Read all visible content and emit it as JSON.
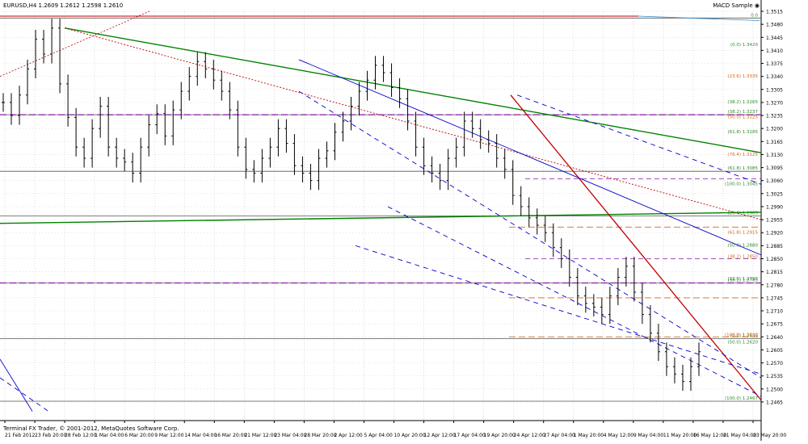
{
  "header": {
    "symbol_info": "EURUSD,H4  1.2609 1.2612 1.2598 1.2610",
    "indicator_label": "MACD Sample ◉"
  },
  "footer": {
    "copyright": "Terminal FX Trader, © 2001-2012, MetaQuotes Software Corp."
  },
  "colors": {
    "background": "#ffffff",
    "price_bars": "#000000",
    "grid": "#c8c8c8",
    "green_trendline": "#008000",
    "red_trendline": "#c00000",
    "blue_channel": "#0000c8",
    "purple_level": "#8a1aa8",
    "fib_orange": "#d26a1a",
    "fib_green": "#2e8b2e",
    "axis_highlight": "#000000"
  },
  "chart_data": {
    "type": "ohlc",
    "title": "EURUSD,H4",
    "ylim": [
      1.2415,
      1.3515
    ],
    "y_ticks": [
      "1.3515",
      "1.3480",
      "1.3445",
      "1.3410",
      "1.3375",
      "1.3340",
      "1.3305",
      "1.3270",
      "1.3235",
      "1.3200",
      "1.3165",
      "1.3130",
      "1.3095",
      "1.3060",
      "1.3025",
      "1.2990",
      "1.2955",
      "1.2920",
      "1.2885",
      "1.2850",
      "1.2815",
      "1.2780",
      "1.2745",
      "1.2710",
      "1.2675",
      "1.2640",
      "1.2605",
      "1.2570",
      "1.2535",
      "1.2500",
      "1.2465"
    ],
    "x_ticks": [
      "21 Feb 2012",
      "23 Feb 20:00",
      "28 Feb 12:00",
      "1 Mar 04:00",
      "6 Mar 20:00",
      "9 Mar 12:00",
      "14 Mar 04:00",
      "16 Mar 20:00",
      "21 Mar 12:00",
      "23 Mar 04:00",
      "28 Mar 20:00",
      "2 Apr 12:00",
      "5 Apr 04:00",
      "10 Apr 20:00",
      "12 Apr 12:00",
      "17 Apr 04:00",
      "19 Apr 20:00",
      "24 Apr 12:00",
      "27 Apr 04:00",
      "1 May 20:00",
      "4 May 12:00",
      "9 May 04:00",
      "11 May 20:00",
      "16 May 12:00",
      "21 May 04:00",
      "23 May 20:00"
    ],
    "bars": [
      1.327,
      1.3235,
      1.329,
      1.336,
      1.344,
      1.34,
      1.347,
      1.332,
      1.323,
      1.315,
      1.312,
      1.32,
      1.326,
      1.315,
      1.312,
      1.311,
      1.308,
      1.315,
      1.321,
      1.324,
      1.318,
      1.325,
      1.33,
      1.334,
      1.338,
      1.336,
      1.333,
      1.33,
      1.325,
      1.315,
      1.309,
      1.308,
      1.312,
      1.315,
      1.32,
      1.316,
      1.31,
      1.308,
      1.306,
      1.312,
      1.314,
      1.319,
      1.322,
      1.326,
      1.33,
      1.333,
      1.337,
      1.335,
      1.331,
      1.328,
      1.322,
      1.315,
      1.31,
      1.308,
      1.306,
      1.312,
      1.315,
      1.322,
      1.32,
      1.317,
      1.316,
      1.312,
      1.309,
      1.302,
      1.299,
      1.296,
      1.294,
      1.292,
      1.288,
      1.285,
      1.28,
      1.275,
      1.273,
      1.272,
      1.27,
      1.275,
      1.28,
      1.283,
      1.276,
      1.27,
      1.265,
      1.26,
      1.256,
      1.254,
      1.252,
      1.256,
      1.26
    ],
    "horizontal_levels": [
      {
        "label": "0.0",
        "price": 1.3497
      },
      {
        "label": "(38.2) 1.3237",
        "price": 1.3237
      },
      {
        "label": "(61.8) 1.3085",
        "price": 1.3085
      },
      {
        "label": "(23.6) 1.2965",
        "price": 1.2965
      },
      {
        "label": "(38.2) 1.2785",
        "price": 1.2785
      },
      {
        "label": "(0.0) 1.2635",
        "price": 1.2635
      },
      {
        "label": "(100.0) 1.2467",
        "price": 1.2467
      }
    ],
    "fib_labels": [
      "(0.0) 1.3420",
      "(23.6) 1.3335",
      "(38.2) 1.3265",
      "(50.0) 1.3225",
      "(61.8) 1.3185",
      "(76.4) 1.3125",
      "(100.0) 1.3045",
      "(61.8) 1.2915",
      "(50.0) 1.2880",
      "(38.2) 1.2850",
      "(23.6) 1.2790",
      "(100.0) 1.2640",
      "(50.0) 1.2620"
    ]
  }
}
